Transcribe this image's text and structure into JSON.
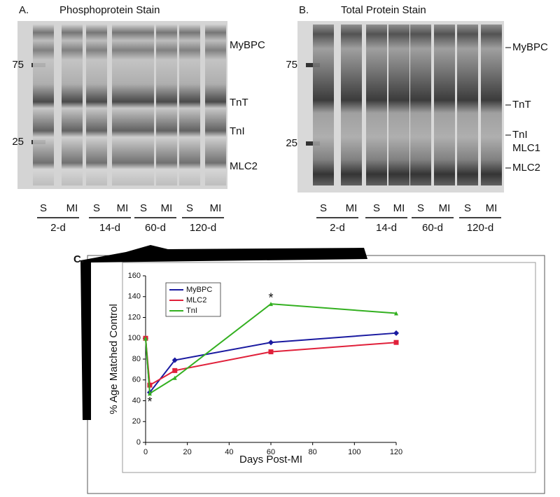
{
  "panel_a": {
    "letter": "A.",
    "title": "Phosphoprotein Stain",
    "markers": [
      "75",
      "25"
    ],
    "bands": [
      "MyBPC",
      "TnT",
      "TnI",
      "MLC2"
    ],
    "lanes": [
      "S",
      "MI",
      "S",
      "MI",
      "S",
      "MI",
      "S",
      "MI"
    ],
    "groups": [
      "2-d",
      "14-d",
      "60-d",
      "120-d"
    ]
  },
  "panel_b": {
    "letter": "B.",
    "title": "Total Protein Stain",
    "markers": [
      "75",
      "25"
    ],
    "bands": [
      "MyBPC",
      "TnT",
      "TnI",
      "MLC1",
      "MLC2"
    ],
    "lanes": [
      "S",
      "MI",
      "S",
      "MI",
      "S",
      "MI",
      "S",
      "MI"
    ],
    "groups": [
      "2-d",
      "14-d",
      "60-d",
      "120-d"
    ]
  },
  "chart_data": {
    "type": "line",
    "panel_letter": "C.",
    "x_label": "Days Post-MI",
    "y_label": "% Age Matched Control",
    "x": [
      0,
      2,
      14,
      60,
      120
    ],
    "series": [
      {
        "name": "MyBPC",
        "color": "#1a1aa0",
        "values": [
          100,
          48,
          79,
          96,
          105
        ]
      },
      {
        "name": "MLC2",
        "color": "#e0203a",
        "values": [
          100,
          55,
          69,
          87,
          96
        ]
      },
      {
        "name": "TnI",
        "color": "#33b020",
        "values": [
          100,
          47,
          62,
          133,
          124
        ]
      }
    ],
    "xlim": [
      0,
      120
    ],
    "xticks": [
      0,
      20,
      40,
      60,
      80,
      100,
      120
    ],
    "ylim": [
      0,
      160
    ],
    "yticks": [
      0,
      20,
      40,
      60,
      80,
      100,
      120,
      140,
      160
    ],
    "annotations": [
      {
        "text": "*",
        "x": 60,
        "y": 138
      },
      {
        "text": "*",
        "x": 2,
        "y": 38
      }
    ],
    "legend": "top-left"
  }
}
